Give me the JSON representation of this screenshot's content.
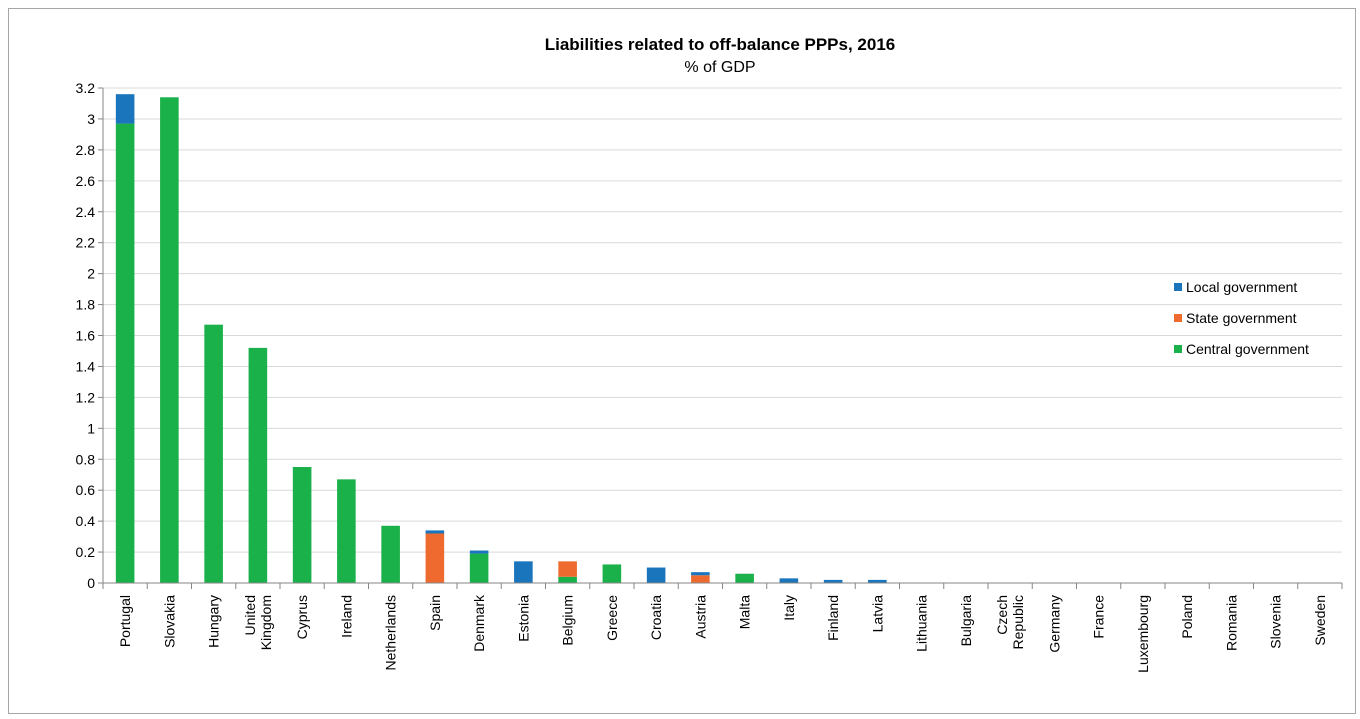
{
  "chart_data": {
    "type": "bar",
    "stacked": true,
    "title": "Liabilities related to off-balance PPPs, 2016",
    "subtitle": "% of GDP",
    "xlabel": "",
    "ylabel": "",
    "ylim": [
      0,
      3.2
    ],
    "yticks": [
      0,
      0.2,
      0.4,
      0.6,
      0.8,
      1,
      1.2,
      1.4,
      1.6,
      1.8,
      2,
      2.2,
      2.4,
      2.6,
      2.8,
      3,
      3.2
    ],
    "yticks_labels": [
      "0",
      "0.2",
      "0.4",
      "0.6",
      "0.8",
      "1",
      "1.2",
      "1.4",
      "1.6",
      "1.8",
      "2",
      "2.2",
      "2.4",
      "2.6",
      "2.8",
      "3",
      "3.2"
    ],
    "grid": true,
    "legend_position": "right",
    "categories": [
      [
        "Portugal"
      ],
      [
        "Slovakia"
      ],
      [
        "Hungary"
      ],
      [
        "United",
        "Kingdom"
      ],
      [
        "Cyprus"
      ],
      [
        "Ireland"
      ],
      [
        "Netherlands"
      ],
      [
        "Spain"
      ],
      [
        "Denmark"
      ],
      [
        "Estonia"
      ],
      [
        "Belgium"
      ],
      [
        "Greece"
      ],
      [
        "Croatia"
      ],
      [
        "Austria"
      ],
      [
        "Malta"
      ],
      [
        "Italy"
      ],
      [
        "Finland"
      ],
      [
        "Latvia"
      ],
      [
        "Lithuania"
      ],
      [
        "Bulgaria"
      ],
      [
        "Czech",
        "Republic"
      ],
      [
        "Germany"
      ],
      [
        "France"
      ],
      [
        "Luxembourg"
      ],
      [
        "Poland"
      ],
      [
        "Romania"
      ],
      [
        "Slovenia"
      ],
      [
        "Sweden"
      ]
    ],
    "series": [
      {
        "name": "Central government",
        "color": "#1ab14a",
        "values": [
          2.97,
          3.14,
          1.67,
          1.52,
          0.75,
          0.67,
          0.37,
          0.0,
          0.19,
          0.0,
          0.04,
          0.12,
          0.0,
          0.0,
          0.06,
          0.0,
          0.0,
          0.0,
          0,
          0,
          0,
          0,
          0,
          0,
          0,
          0,
          0,
          0
        ]
      },
      {
        "name": "State government",
        "color": "#ee6a2e",
        "values": [
          0,
          0,
          0,
          0,
          0,
          0,
          0,
          0.32,
          0,
          0,
          0.1,
          0,
          0,
          0.05,
          0,
          0,
          0,
          0,
          0,
          0,
          0,
          0,
          0,
          0,
          0,
          0,
          0,
          0
        ]
      },
      {
        "name": "Local government",
        "color": "#1a75bc",
        "values": [
          0.19,
          0,
          0,
          0,
          0,
          0,
          0,
          0.02,
          0.02,
          0.14,
          0,
          0,
          0.1,
          0.02,
          0,
          0.03,
          0.02,
          0.02,
          0,
          0,
          0,
          0,
          0,
          0,
          0,
          0,
          0,
          0
        ]
      }
    ],
    "legend_order": [
      "Local government",
      "State government",
      "Central government"
    ]
  }
}
